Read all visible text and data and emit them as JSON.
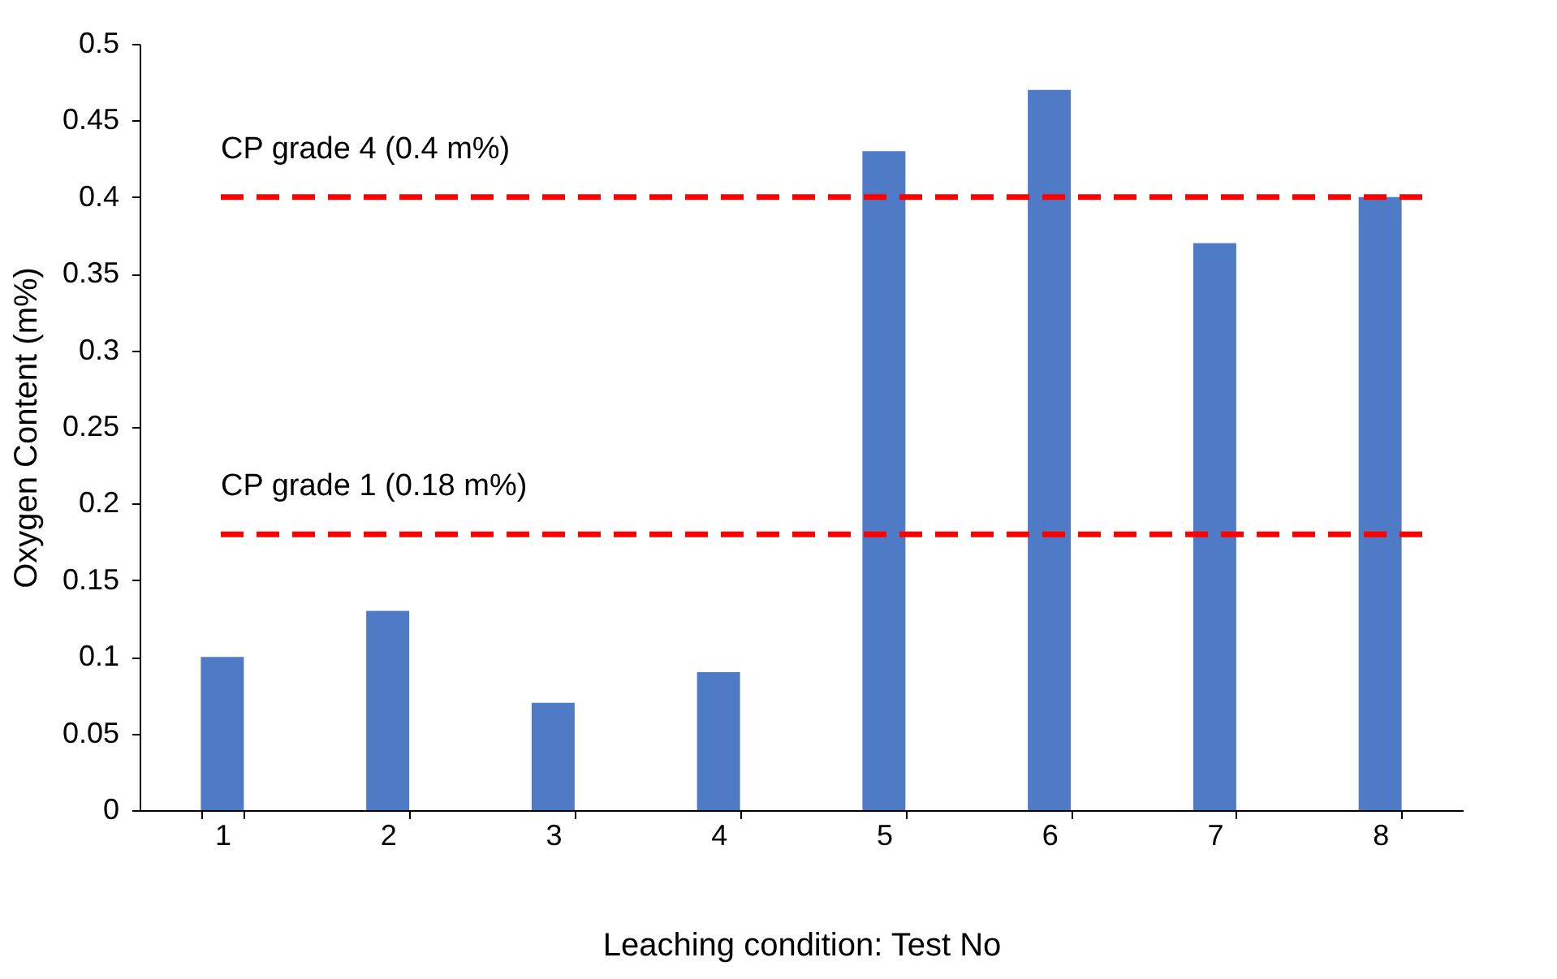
{
  "chart_data": {
    "type": "bar",
    "xlabel": "Leaching condition: Test No",
    "ylabel": "Oxygen Content (m%)",
    "categories": [
      "1",
      "2",
      "3",
      "4",
      "5",
      "6",
      "7",
      "8"
    ],
    "values": [
      0.1,
      0.13,
      0.07,
      0.09,
      0.43,
      0.47,
      0.37,
      0.4
    ],
    "color": "#4f7ac6",
    "ylim": [
      0,
      0.5
    ],
    "yticks": [
      0,
      0.05,
      0.1,
      0.15,
      0.2,
      0.25,
      0.3,
      0.35,
      0.4,
      0.45,
      0.5
    ],
    "grid": false,
    "ref_lines": [
      {
        "axis": "y",
        "value": 0.4,
        "label": "CP grade 4 (0.4 m%)",
        "color": "#ff0000",
        "line_style": "dashed"
      },
      {
        "axis": "y",
        "value": 0.18,
        "label": "CP grade 1 (0.18 m%)",
        "color": "#ff0000",
        "line_style": "dashed"
      }
    ]
  }
}
